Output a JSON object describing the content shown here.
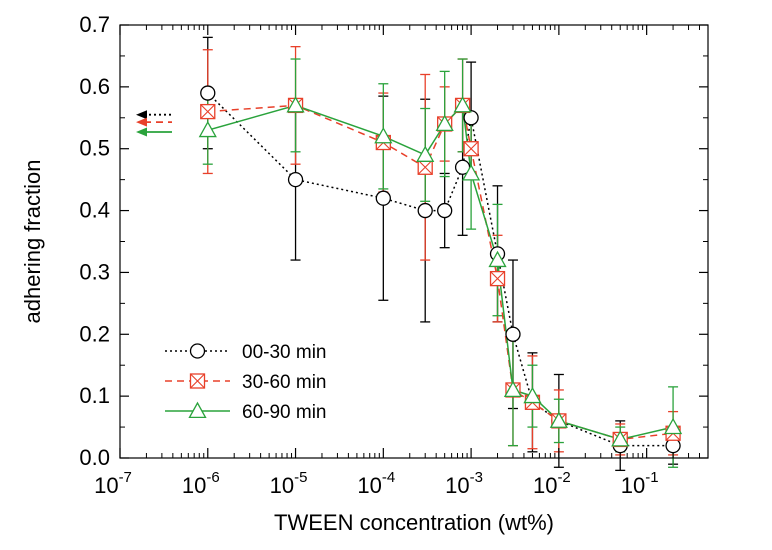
{
  "chart_data": {
    "type": "scatter",
    "xlabel": "TWEEN concentration (wt%)",
    "ylabel": "adhering fraction",
    "xscale": "log",
    "xlim": [
      1e-07,
      0.5
    ],
    "ylim": [
      0,
      0.7
    ],
    "legend_position": "bottom-left",
    "grid": false,
    "x_ticks": [
      {
        "value": 1e-07,
        "base": "10",
        "exp": "-7"
      },
      {
        "value": 1e-06,
        "base": "10",
        "exp": "-6"
      },
      {
        "value": 1e-05,
        "base": "10",
        "exp": "-5"
      },
      {
        "value": 0.0001,
        "base": "10",
        "exp": "-4"
      },
      {
        "value": 0.001,
        "base": "10",
        "exp": "-3"
      },
      {
        "value": 0.01,
        "base": "10",
        "exp": "-2"
      },
      {
        "value": 0.1,
        "base": "10",
        "exp": "-1"
      }
    ],
    "y_ticks": [
      "0.0",
      "0.1",
      "0.2",
      "0.3",
      "0.4",
      "0.5",
      "0.6",
      "0.7"
    ],
    "series": [
      {
        "name": "00-30 min",
        "color": "#000000",
        "line_style": "dotted",
        "marker": "circle",
        "points": [
          {
            "x": 1e-06,
            "y": 0.59,
            "err": 0.09
          },
          {
            "x": 1e-05,
            "y": 0.45,
            "err": 0.13
          },
          {
            "x": 0.0001,
            "y": 0.42,
            "err": 0.165
          },
          {
            "x": 0.0003,
            "y": 0.4,
            "err": 0.18
          },
          {
            "x": 0.0005,
            "y": 0.4,
            "err": 0.06
          },
          {
            "x": 0.0008,
            "y": 0.47,
            "err": 0.11
          },
          {
            "x": 0.001,
            "y": 0.55,
            "err": 0.09
          },
          {
            "x": 0.002,
            "y": 0.33,
            "err": 0.11
          },
          {
            "x": 0.003,
            "y": 0.2,
            "err": 0.12
          },
          {
            "x": 0.005,
            "y": 0.09,
            "err": 0.08
          },
          {
            "x": 0.01,
            "y": 0.06,
            "err": 0.075
          },
          {
            "x": 0.05,
            "y": 0.02,
            "err": 0.04
          },
          {
            "x": 0.2,
            "y": 0.02,
            "err": 0.03
          }
        ],
        "initial_value": 0.555
      },
      {
        "name": "30-60 min",
        "color": "#e8402a",
        "line_style": "dashed",
        "marker": "square-x",
        "points": [
          {
            "x": 1e-06,
            "y": 0.56,
            "err": 0.1
          },
          {
            "x": 1e-05,
            "y": 0.57,
            "err": 0.095
          },
          {
            "x": 0.0001,
            "y": 0.51,
            "err": 0.08
          },
          {
            "x": 0.0003,
            "y": 0.47,
            "err": 0.15
          },
          {
            "x": 0.0005,
            "y": 0.54,
            "err": 0.06
          },
          {
            "x": 0.0008,
            "y": 0.57,
            "err": 0.075
          },
          {
            "x": 0.001,
            "y": 0.5,
            "err": 0.05
          },
          {
            "x": 0.002,
            "y": 0.29,
            "err": 0.07
          },
          {
            "x": 0.003,
            "y": 0.11,
            "err": 0.09
          },
          {
            "x": 0.005,
            "y": 0.09,
            "err": 0.075
          },
          {
            "x": 0.01,
            "y": 0.06,
            "err": 0.05
          },
          {
            "x": 0.05,
            "y": 0.03,
            "err": 0.025
          },
          {
            "x": 0.2,
            "y": 0.04,
            "err": 0.035
          }
        ],
        "initial_value": 0.543
      },
      {
        "name": "60-90 min",
        "color": "#2aa33c",
        "line_style": "solid",
        "marker": "triangle",
        "points": [
          {
            "x": 1e-06,
            "y": 0.53,
            "err": 0.055
          },
          {
            "x": 1e-05,
            "y": 0.57,
            "err": 0.075
          },
          {
            "x": 0.0001,
            "y": 0.52,
            "err": 0.085
          },
          {
            "x": 0.0003,
            "y": 0.49,
            "err": 0.075
          },
          {
            "x": 0.0005,
            "y": 0.54,
            "err": 0.085
          },
          {
            "x": 0.0008,
            "y": 0.57,
            "err": 0.075
          },
          {
            "x": 0.001,
            "y": 0.46,
            "err": 0.09
          },
          {
            "x": 0.002,
            "y": 0.32,
            "err": 0.09
          },
          {
            "x": 0.003,
            "y": 0.11,
            "err": 0.09
          },
          {
            "x": 0.005,
            "y": 0.1,
            "err": 0.05
          },
          {
            "x": 0.01,
            "y": 0.06,
            "err": 0.035
          },
          {
            "x": 0.05,
            "y": 0.03,
            "err": 0.02
          },
          {
            "x": 0.2,
            "y": 0.05,
            "err": 0.065
          }
        ],
        "initial_value": 0.527
      }
    ]
  }
}
